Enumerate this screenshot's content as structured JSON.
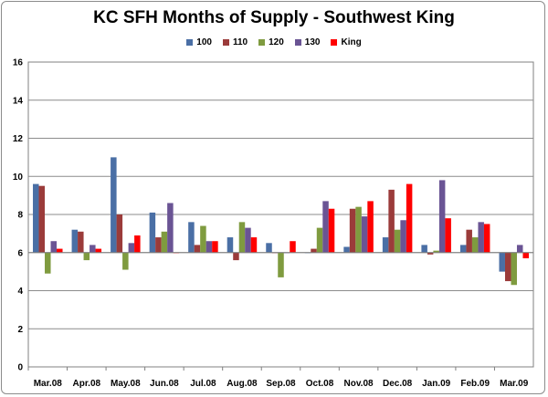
{
  "chart_data": {
    "type": "bar",
    "title": "KC SFH Months of Supply - Southwest King",
    "xlabel": "",
    "ylabel": "",
    "ylim": [
      0,
      16
    ],
    "baseline": 6,
    "yticks": [
      "0",
      "2",
      "4",
      "6",
      "8",
      "10",
      "12",
      "14",
      "16"
    ],
    "grid": "horizontal",
    "legend_position": "top",
    "categories": [
      "Mar.08",
      "Apr.08",
      "May.08",
      "Jun.08",
      "Jul.08",
      "Aug.08",
      "Sep.08",
      "Oct.08",
      "Nov.08",
      "Dec.08",
      "Jan.09",
      "Feb.09",
      "Mar.09"
    ],
    "series": [
      {
        "name": "100",
        "color": "#4a6fa5",
        "values": [
          9.6,
          7.2,
          11.0,
          8.1,
          7.6,
          6.8,
          6.5,
          6.0,
          6.3,
          6.8,
          6.4,
          6.4,
          5.0
        ]
      },
      {
        "name": "110",
        "color": "#9b3b3a",
        "values": [
          9.5,
          7.1,
          8.0,
          6.8,
          6.4,
          5.6,
          6.0,
          6.2,
          8.3,
          9.3,
          5.9,
          7.2,
          4.5
        ]
      },
      {
        "name": "120",
        "color": "#7f9b3f",
        "values": [
          4.9,
          5.6,
          5.1,
          7.1,
          7.4,
          7.6,
          4.7,
          7.3,
          8.4,
          7.2,
          6.1,
          6.8,
          4.3
        ]
      },
      {
        "name": "130",
        "color": "#6a5494",
        "values": [
          6.6,
          6.4,
          6.5,
          8.6,
          6.6,
          7.3,
          6.0,
          8.7,
          7.9,
          7.7,
          9.8,
          7.6,
          6.4
        ]
      },
      {
        "name": "King",
        "color": "#ff0000",
        "values": [
          6.2,
          6.2,
          6.9,
          6.0,
          6.6,
          6.8,
          6.6,
          8.3,
          8.7,
          9.6,
          7.8,
          7.5,
          5.7
        ]
      }
    ]
  }
}
